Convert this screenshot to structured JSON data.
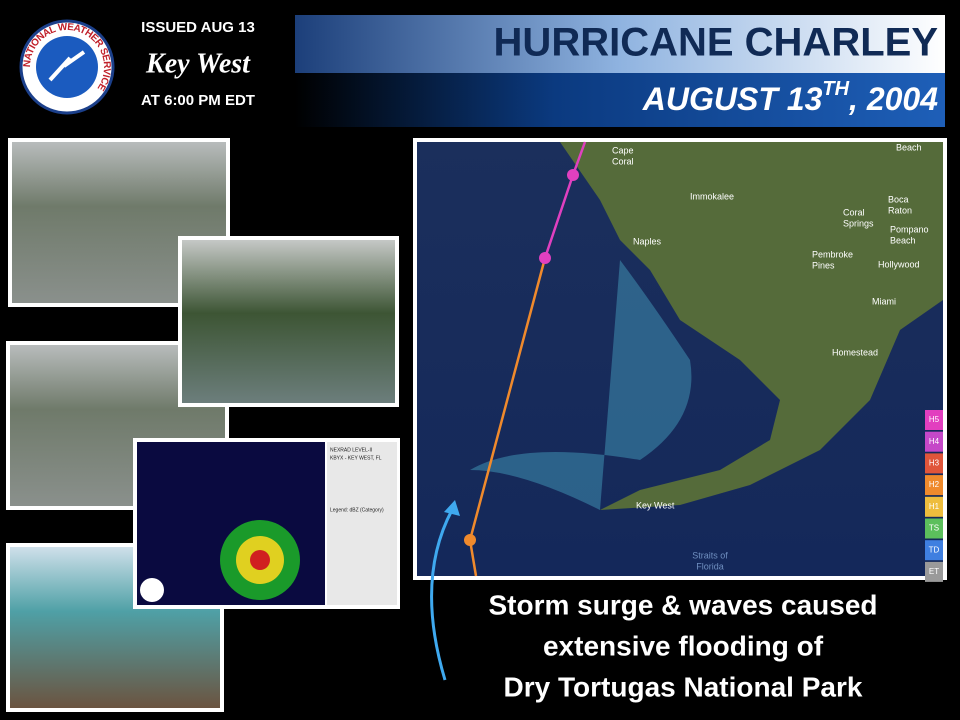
{
  "logo": {
    "text": "NATIONAL WEATHER SERVICE"
  },
  "issued": {
    "line1": "ISSUED AUG 13",
    "office": "Key West",
    "line2": "AT 6:00 PM EDT"
  },
  "header": {
    "title": "HURRICANE CHARLEY",
    "date": "AUGUST 13",
    "date_sup": "TH",
    "date_year": ", 2004"
  },
  "map": {
    "labels": [
      [
        "Cape",
        "Coral"
      ],
      [
        "Immokalee"
      ],
      [
        "Naples"
      ],
      [
        "Coral",
        "Springs"
      ],
      [
        "Boca",
        "Raton"
      ],
      [
        "Pompano",
        "Beach"
      ],
      [
        "Pembroke",
        "Pines"
      ],
      [
        "Hollywood"
      ],
      [
        "Miami"
      ],
      [
        "Homestead"
      ],
      [
        "Key West"
      ],
      [
        "Straits of",
        "Florida"
      ],
      [
        "Beach"
      ]
    ],
    "legend": [
      {
        "label": "H5",
        "color": "#e23fbf"
      },
      {
        "label": "H4",
        "color": "#c548c8"
      },
      {
        "label": "H3",
        "color": "#e0553a"
      },
      {
        "label": "H2",
        "color": "#ef8a2c"
      },
      {
        "label": "H1",
        "color": "#eebd3d"
      },
      {
        "label": "TS",
        "color": "#5cbf5c"
      },
      {
        "label": "TD",
        "color": "#3f7fe0"
      },
      {
        "label": "ET",
        "color": "#9a9a9a"
      }
    ]
  },
  "radar": {
    "lines": [
      "NEXRAD LEVEL-II",
      "KBYX - KEY WEST, FL",
      "Legend: dBZ (Category)"
    ]
  },
  "caption": {
    "lines": [
      "Storm surge & waves caused",
      "extensive flooding of",
      "Dry Tortugas National Park"
    ]
  }
}
